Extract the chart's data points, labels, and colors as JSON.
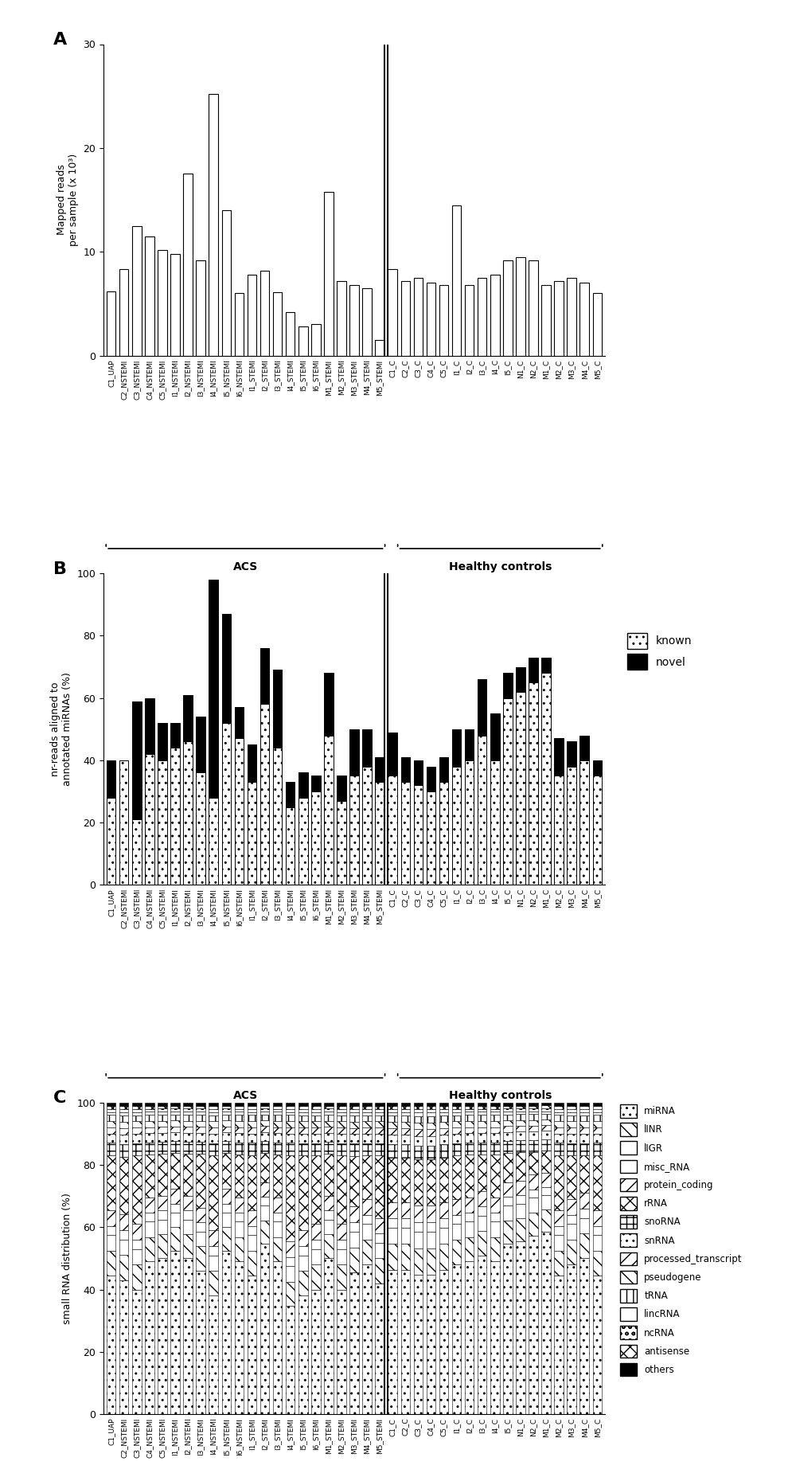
{
  "acs_labels": [
    "C1_UAP",
    "C2_NSTEMI",
    "C3_NSTEMI",
    "C4_NSTEMI",
    "C5_NSTEMI",
    "I1_NSTEMI",
    "I2_NSTEMI",
    "I3_NSTEMI",
    "I4_NSTEMI",
    "I5_NSTEMI",
    "I6_NSTEMI",
    "I1_STEMI",
    "I2_STEMI",
    "I3_STEMI",
    "I4_STEMI",
    "I5_STEMI",
    "I6_STEMI",
    "M1_STEMI",
    "M2_STEMI",
    "M3_STEMI",
    "M4_STEMI",
    "M5_STEMI"
  ],
  "healthy_labels": [
    "C1_C",
    "C2_C",
    "C3_C",
    "C4_C",
    "C5_C",
    "I1_C",
    "I2_C",
    "I3_C",
    "I4_C",
    "I5_C",
    "N1_C",
    "N2_C",
    "M1_C",
    "M2_C",
    "M3_C",
    "M4_C",
    "M5_C"
  ],
  "panel_A_values": [
    6.2,
    8.3,
    12.5,
    11.5,
    10.2,
    9.8,
    17.5,
    9.2,
    25.2,
    14.0,
    6.0,
    7.8,
    8.2,
    6.1,
    4.2,
    2.8,
    3.0,
    15.8,
    7.2,
    6.8,
    6.5,
    1.5,
    8.3,
    7.2,
    7.5,
    7.0,
    6.8,
    14.5,
    6.8,
    7.5,
    7.8,
    9.2,
    9.5,
    9.2,
    6.8,
    7.2,
    7.5,
    7.0,
    6.0
  ],
  "panel_B_known": [
    28,
    40,
    21,
    42,
    40,
    44,
    46,
    36,
    28,
    52,
    47,
    33,
    58,
    44,
    25,
    28,
    30,
    48,
    27,
    35,
    38,
    33,
    35,
    33,
    32,
    30,
    33,
    38,
    40,
    48,
    40,
    60,
    62,
    65,
    68,
    35,
    38,
    40,
    35
  ],
  "panel_B_novel": [
    12,
    0,
    38,
    18,
    12,
    8,
    15,
    18,
    70,
    35,
    10,
    12,
    18,
    25,
    8,
    8,
    5,
    20,
    8,
    15,
    12,
    8,
    14,
    8,
    8,
    8,
    8,
    12,
    10,
    18,
    15,
    8,
    8,
    8,
    5,
    12,
    8,
    8,
    5
  ],
  "panel_C_miRNA": [
    45,
    42,
    40,
    50,
    52,
    55,
    52,
    48,
    38,
    55,
    50,
    45,
    58,
    50,
    35,
    38,
    40,
    52,
    40,
    45,
    48,
    42,
    45,
    45,
    42,
    42,
    45,
    48,
    50,
    52,
    50,
    58,
    60,
    62,
    65,
    45,
    48,
    50,
    45
  ],
  "panel_C_lINR": [
    8,
    8,
    8,
    8,
    8,
    8,
    8,
    8,
    8,
    8,
    8,
    8,
    8,
    8,
    8,
    8,
    8,
    8,
    8,
    8,
    8,
    8,
    8,
    8,
    8,
    8,
    8,
    8,
    8,
    8,
    8,
    8,
    8,
    8,
    8,
    8,
    8,
    8,
    8
  ],
  "panel_C_lIGR": [
    5,
    5,
    5,
    5,
    5,
    5,
    5,
    5,
    5,
    5,
    5,
    5,
    5,
    5,
    5,
    5,
    5,
    5,
    5,
    5,
    5,
    5,
    5,
    5,
    5,
    5,
    5,
    5,
    5,
    5,
    5,
    5,
    5,
    5,
    5,
    5,
    5,
    5,
    5
  ],
  "panel_C_misc_RNA": [
    3,
    3,
    3,
    3,
    3,
    3,
    3,
    3,
    3,
    3,
    3,
    3,
    3,
    3,
    3,
    3,
    3,
    3,
    3,
    3,
    3,
    3,
    3,
    3,
    3,
    3,
    3,
    3,
    3,
    3,
    3,
    3,
    3,
    3,
    3,
    3,
    3,
    3,
    3
  ],
  "panel_C_protein_coding": [
    5,
    5,
    5,
    5,
    5,
    5,
    5,
    5,
    5,
    5,
    5,
    5,
    5,
    5,
    5,
    5,
    5,
    5,
    5,
    5,
    5,
    5,
    5,
    5,
    5,
    5,
    5,
    5,
    5,
    5,
    5,
    5,
    5,
    5,
    5,
    5,
    5,
    5,
    5
  ],
  "panel_C_rRNA": [
    18,
    18,
    22,
    14,
    14,
    12,
    14,
    18,
    24,
    12,
    14,
    18,
    10,
    14,
    28,
    24,
    22,
    14,
    22,
    16,
    14,
    20,
    14,
    14,
    14,
    14,
    14,
    14,
    14,
    12,
    14,
    10,
    10,
    8,
    8,
    18,
    14,
    12,
    18
  ],
  "panel_C_snoRNA": [
    4,
    4,
    4,
    4,
    4,
    4,
    4,
    4,
    4,
    4,
    4,
    4,
    4,
    4,
    4,
    4,
    4,
    4,
    4,
    4,
    4,
    4,
    4,
    4,
    4,
    4,
    4,
    4,
    4,
    4,
    4,
    4,
    4,
    4,
    4,
    4,
    4,
    4,
    4
  ],
  "panel_C_snRNA": [
    3,
    3,
    3,
    3,
    3,
    3,
    3,
    3,
    3,
    3,
    3,
    3,
    3,
    3,
    3,
    3,
    3,
    3,
    3,
    3,
    3,
    3,
    3,
    3,
    3,
    3,
    3,
    3,
    3,
    3,
    3,
    3,
    3,
    3,
    3,
    3,
    3,
    3,
    3
  ],
  "panel_C_processed_transcript": [
    2,
    2,
    2,
    2,
    2,
    2,
    2,
    2,
    2,
    2,
    2,
    2,
    2,
    2,
    2,
    2,
    2,
    2,
    2,
    2,
    2,
    2,
    2,
    2,
    2,
    2,
    2,
    2,
    2,
    2,
    2,
    2,
    2,
    2,
    2,
    2,
    2,
    2,
    2
  ],
  "panel_C_pseudogene": [
    2,
    2,
    2,
    2,
    2,
    2,
    2,
    2,
    2,
    2,
    2,
    2,
    2,
    2,
    2,
    2,
    2,
    2,
    2,
    2,
    2,
    2,
    2,
    2,
    2,
    2,
    2,
    2,
    2,
    2,
    2,
    2,
    2,
    2,
    2,
    2,
    2,
    2,
    2
  ],
  "panel_C_tRNA": [
    2,
    2,
    2,
    2,
    2,
    2,
    2,
    2,
    2,
    2,
    2,
    2,
    2,
    2,
    2,
    2,
    2,
    2,
    2,
    2,
    2,
    2,
    2,
    2,
    2,
    2,
    2,
    2,
    2,
    2,
    2,
    2,
    2,
    2,
    2,
    2,
    2,
    2,
    2
  ],
  "panel_C_lincRNA": [
    1,
    1,
    1,
    1,
    1,
    1,
    1,
    1,
    1,
    1,
    1,
    1,
    1,
    1,
    1,
    1,
    1,
    1,
    1,
    1,
    1,
    1,
    1,
    1,
    1,
    1,
    1,
    1,
    1,
    1,
    1,
    1,
    1,
    1,
    1,
    1,
    1,
    1,
    1
  ],
  "panel_C_ncRNA": [
    1,
    1,
    1,
    1,
    1,
    1,
    1,
    1,
    1,
    1,
    1,
    1,
    1,
    1,
    1,
    1,
    1,
    1,
    1,
    1,
    1,
    1,
    1,
    1,
    1,
    1,
    1,
    1,
    1,
    1,
    1,
    1,
    1,
    1,
    1,
    1,
    1,
    1,
    1
  ],
  "panel_C_antisense": [
    1,
    1,
    1,
    1,
    1,
    1,
    1,
    1,
    1,
    1,
    1,
    1,
    1,
    1,
    1,
    1,
    1,
    1,
    1,
    1,
    1,
    1,
    1,
    1,
    1,
    1,
    1,
    1,
    1,
    1,
    1,
    1,
    1,
    1,
    1,
    1,
    1,
    1,
    1
  ],
  "panel_C_others": [
    1,
    1,
    1,
    1,
    1,
    1,
    1,
    1,
    1,
    1,
    1,
    1,
    1,
    1,
    1,
    1,
    1,
    1,
    1,
    1,
    1,
    1,
    1,
    1,
    1,
    1,
    1,
    1,
    1,
    1,
    1,
    1,
    1,
    1,
    1,
    1,
    1,
    1,
    1
  ]
}
